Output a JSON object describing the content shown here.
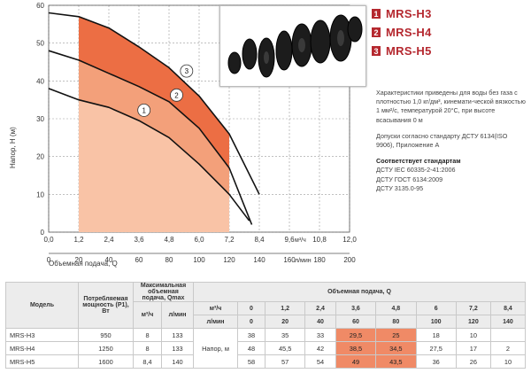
{
  "legend": [
    {
      "num": "1",
      "label": "MRS-H3"
    },
    {
      "num": "2",
      "label": "MRS-H4"
    },
    {
      "num": "3",
      "label": "MRS-H5"
    }
  ],
  "notes": {
    "p1": "Характеристики приведены для воды без газа с плотностью 1,0 кг/дм³, кинемати-ческой вязкостью 1 мм²/с, температурой 20°С, при высоте всасывания 0 м",
    "p2": "Допуски согласно стандарту ДСТУ 6134(ISO 9906), Приложение А",
    "std_title": "Соответствует стандартам",
    "std1": "ДСТУ IEC 60335-2-41:2006",
    "std2": "ДСТУ ГОСТ 6134:2009",
    "std3": "ДСТУ 3135.0-95"
  },
  "chart_data": {
    "type": "line",
    "ylabel": "Напор, H (м)",
    "xlabel": "Объемная подача, Q",
    "x_unit": "м³/ч",
    "x2_unit": "л/мин",
    "xlim": [
      0,
      12
    ],
    "ylim": [
      0,
      60
    ],
    "x_ticks": [
      "0,0",
      "1,2",
      "2,4",
      "3,6",
      "4,8",
      "6,0",
      "7,2",
      "8,4",
      "9,6",
      "10,8",
      "12,0"
    ],
    "x2_ticks": [
      "0",
      "20",
      "40",
      "60",
      "80",
      "100",
      "120",
      "140",
      "160",
      "180",
      "200"
    ],
    "y_ticks": [
      "0",
      "10",
      "20",
      "30",
      "40",
      "50",
      "60"
    ],
    "shaded_region_x": [
      1.2,
      7.2
    ],
    "series": [
      {
        "name": "1",
        "x": [
          0,
          1.2,
          2.4,
          3.6,
          4.8,
          6.0,
          7.2,
          8.0
        ],
        "y": [
          38,
          35,
          33,
          29.5,
          25,
          18,
          10,
          3
        ]
      },
      {
        "name": "2",
        "x": [
          0,
          1.2,
          2.4,
          3.6,
          4.8,
          6.0,
          7.2,
          8.1
        ],
        "y": [
          48,
          45.5,
          42,
          38.5,
          34.5,
          27.5,
          17,
          2
        ]
      },
      {
        "name": "3",
        "x": [
          0,
          1.2,
          2.4,
          3.6,
          4.8,
          6.0,
          7.2,
          8.4
        ],
        "y": [
          58,
          57,
          54,
          49,
          43.5,
          36,
          26,
          10
        ]
      }
    ]
  },
  "table": {
    "head1": {
      "model": "Модель",
      "power": "Потребляемая мощность (P1), Вт",
      "qmax": "Максимальная объемная подача, Qmax",
      "flow": "Объемная подача, Q"
    },
    "head2": {
      "qmax_m3": "м³/ч",
      "qmax_l": "л/мин",
      "unit_m3": "м³/ч",
      "unit_l": "л/мин"
    },
    "flow_m3": [
      "0",
      "1,2",
      "2,4",
      "3,6",
      "4,8",
      "6",
      "7,2",
      "8,4"
    ],
    "flow_l": [
      "0",
      "20",
      "40",
      "60",
      "80",
      "100",
      "120",
      "140"
    ],
    "head_label": "Напор, м",
    "rows": [
      {
        "model": "MRS-H3",
        "power": "950",
        "q_m3": "8",
        "q_l": "133",
        "vals": [
          "38",
          "35",
          "33",
          "29,5",
          "25",
          "18",
          "10",
          ""
        ]
      },
      {
        "model": "MRS-H4",
        "power": "1250",
        "q_m3": "8",
        "q_l": "133",
        "vals": [
          "48",
          "45,5",
          "42",
          "38,5",
          "34,5",
          "27,5",
          "17",
          "2"
        ]
      },
      {
        "model": "MRS-H5",
        "power": "1600",
        "q_m3": "8,4",
        "q_l": "140",
        "vals": [
          "58",
          "57",
          "54",
          "49",
          "43,5",
          "36",
          "26",
          "10"
        ]
      }
    ]
  }
}
